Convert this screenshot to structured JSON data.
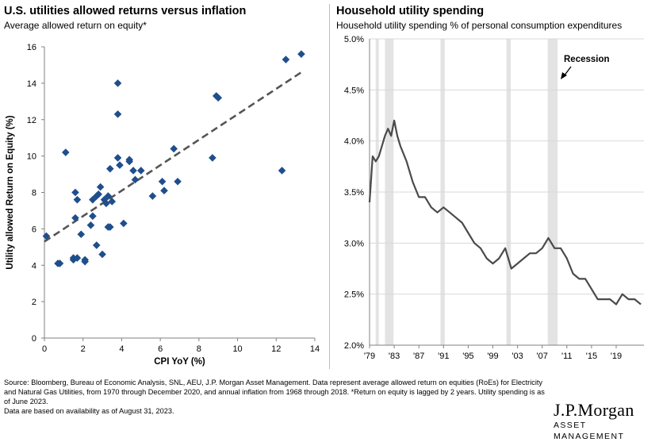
{
  "left": {
    "title": "U.S. utilities allowed returns versus inflation",
    "subtitle": "Average allowed return on equity*"
  },
  "right": {
    "title": "Household utility spending",
    "subtitle": "Household utility spending % of personal consumption expenditures",
    "annotation": "Recession"
  },
  "footnote": {
    "line1": "Source: Bloomberg, Bureau of Economic Analysis, SNL, AEU, J.P. Morgan Asset Management. Data represent average allowed return on equities (RoEs) for Electricity and Natural Gas Utilities, from 1970 through December 2020, and annual inflation from 1968 through 2018. *Return on equity is lagged by 2 years. Utility spending is as of June 2023.",
    "line2": "Data are based on availability as of August 31, 2023."
  },
  "logo": {
    "main": "J.P.Morgan",
    "sub": "ASSET MANAGEMENT"
  },
  "colors": {
    "marker": "#1f4e8c",
    "trend": "#555555",
    "line": "#4a4a4a",
    "recession": "#e3e3e3",
    "grid": "#d9d9d9",
    "axis": "#808080"
  },
  "chart_data": [
    {
      "type": "scatter",
      "xlabel": "CPI YoY (%)",
      "ylabel": "Utility allowed Return on Equity (%)",
      "xlim": [
        0,
        14
      ],
      "ylim": [
        0,
        16
      ],
      "xticks": [
        "0",
        "2",
        "4",
        "6",
        "8",
        "10",
        "12",
        "14"
      ],
      "yticks": [
        "0",
        "2",
        "4",
        "6",
        "8",
        "10",
        "12",
        "14",
        "16"
      ],
      "trendline": {
        "x": [
          0,
          13.3
        ],
        "y": [
          5.3,
          14.6
        ],
        "style": "dashed"
      },
      "points": [
        [
          0.1,
          5.6
        ],
        [
          0.7,
          4.1
        ],
        [
          0.8,
          4.1
        ],
        [
          1.1,
          10.2
        ],
        [
          1.5,
          4.3
        ],
        [
          1.5,
          4.4
        ],
        [
          1.6,
          6.6
        ],
        [
          1.6,
          8.0
        ],
        [
          1.7,
          7.6
        ],
        [
          1.7,
          4.4
        ],
        [
          1.9,
          5.7
        ],
        [
          2.1,
          4.2
        ],
        [
          2.1,
          4.3
        ],
        [
          2.4,
          6.2
        ],
        [
          2.5,
          6.7
        ],
        [
          2.5,
          7.6
        ],
        [
          2.7,
          5.1
        ],
        [
          2.7,
          7.8
        ],
        [
          2.8,
          7.9
        ],
        [
          2.9,
          8.3
        ],
        [
          3.0,
          4.6
        ],
        [
          3.1,
          7.6
        ],
        [
          3.2,
          7.4
        ],
        [
          3.3,
          6.1
        ],
        [
          3.3,
          7.8
        ],
        [
          3.4,
          6.1
        ],
        [
          3.4,
          9.3
        ],
        [
          3.5,
          7.5
        ],
        [
          3.8,
          14.0
        ],
        [
          3.8,
          12.3
        ],
        [
          3.8,
          9.9
        ],
        [
          3.9,
          9.5
        ],
        [
          4.1,
          6.3
        ],
        [
          4.4,
          9.7
        ],
        [
          4.4,
          9.8
        ],
        [
          4.6,
          9.2
        ],
        [
          4.7,
          8.7
        ],
        [
          5.0,
          9.2
        ],
        [
          5.6,
          7.8
        ],
        [
          6.1,
          8.6
        ],
        [
          6.2,
          8.1
        ],
        [
          6.7,
          10.4
        ],
        [
          6.9,
          8.6
        ],
        [
          8.7,
          9.9
        ],
        [
          8.9,
          13.3
        ],
        [
          9.0,
          13.2
        ],
        [
          12.3,
          9.2
        ],
        [
          12.5,
          15.3
        ],
        [
          13.3,
          15.6
        ]
      ]
    },
    {
      "type": "line",
      "xlabel": "",
      "ylabel": "",
      "xlim": [
        1979,
        2023.5
      ],
      "ylim": [
        2.0,
        5.0
      ],
      "xticks": [
        {
          "label": "'79",
          "value": 1979
        },
        {
          "label": "'83",
          "value": 1983
        },
        {
          "label": "'87",
          "value": 1987
        },
        {
          "label": "'91",
          "value": 1991
        },
        {
          "label": "'95",
          "value": 1995
        },
        {
          "label": "'99",
          "value": 1999
        },
        {
          "label": "'03",
          "value": 2003
        },
        {
          "label": "'07",
          "value": 2007
        },
        {
          "label": "'11",
          "value": 2011
        },
        {
          "label": "'15",
          "value": 2015
        },
        {
          "label": "'19",
          "value": 2019
        }
      ],
      "yticks": [
        "2.0%",
        "2.5%",
        "3.0%",
        "3.5%",
        "4.0%",
        "4.5%",
        "5.0%"
      ],
      "recessions": [
        [
          1980.0,
          1980.5
        ],
        [
          1981.5,
          1982.9
        ],
        [
          1990.5,
          1991.2
        ],
        [
          2001.2,
          2001.9
        ],
        [
          2007.9,
          2009.5
        ]
      ],
      "series": [
        {
          "x": [
            1979.0,
            1979.5,
            1980.0,
            1980.5,
            1981.0,
            1981.5,
            1982.0,
            1982.5,
            1983.0,
            1983.5,
            1984.0,
            1985.0,
            1986.0,
            1987.0,
            1988.0,
            1989.0,
            1990.0,
            1991.0,
            1992.0,
            1993.0,
            1994.0,
            1995.0,
            1996.0,
            1997.0,
            1998.0,
            1999.0,
            2000.0,
            2001.0,
            2002.0,
            2003.0,
            2004.0,
            2005.0,
            2006.0,
            2007.0,
            2008.0,
            2009.0,
            2010.0,
            2011.0,
            2012.0,
            2013.0,
            2014.0,
            2015.0,
            2016.0,
            2017.0,
            2018.0,
            2019.0,
            2020.0,
            2021.0,
            2022.0,
            2023.0
          ],
          "values": [
            3.4,
            3.85,
            3.8,
            3.85,
            3.95,
            4.05,
            4.12,
            4.05,
            4.2,
            4.05,
            3.95,
            3.8,
            3.6,
            3.45,
            3.45,
            3.35,
            3.3,
            3.35,
            3.3,
            3.25,
            3.2,
            3.1,
            3.0,
            2.95,
            2.85,
            2.8,
            2.85,
            2.95,
            2.75,
            2.8,
            2.85,
            2.9,
            2.9,
            2.95,
            3.05,
            2.95,
            2.95,
            2.85,
            2.7,
            2.65,
            2.65,
            2.55,
            2.45,
            2.45,
            2.45,
            2.4,
            2.5,
            2.45,
            2.45,
            2.4
          ]
        }
      ]
    }
  ]
}
